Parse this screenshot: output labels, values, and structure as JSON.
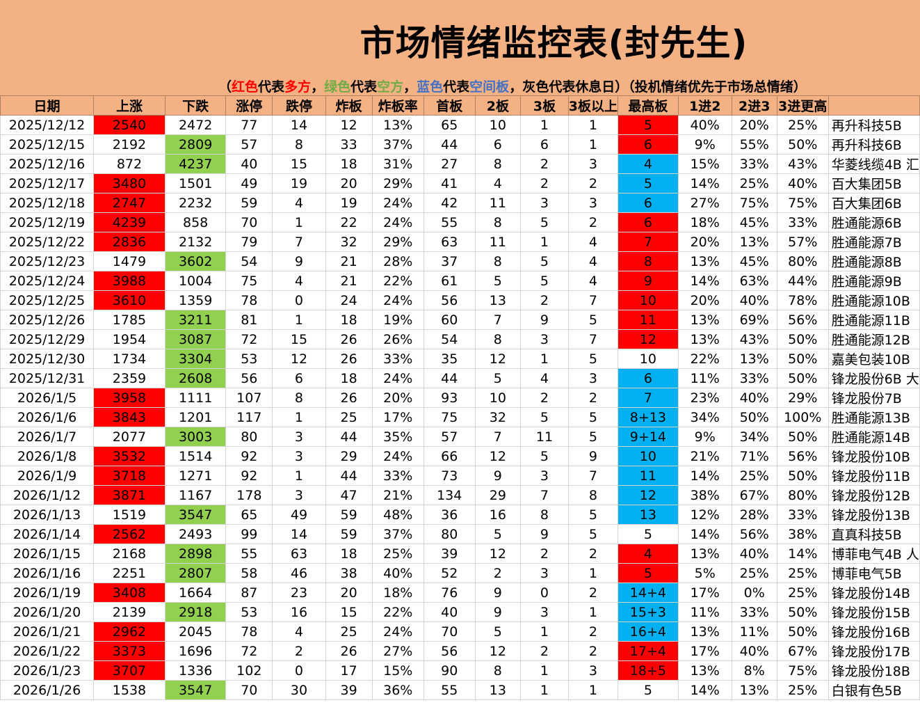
{
  "title": "市场情绪监控表(封先生)",
  "legend": {
    "open": "（",
    "red_word": "红色",
    "red_mid": "代表",
    "red_side": "多方",
    "sep1": "，",
    "green_word": "绿色",
    "green_mid": "代表",
    "green_side": "空方",
    "sep2": "，",
    "blue_word": "蓝色",
    "blue_mid": "代表",
    "blue_side": "空间板",
    "gray_text": "，灰色代表休息日）（投机情绪优先于市场总情绪）"
  },
  "colors": {
    "header_bg": "#f4b183",
    "red": "#ff0000",
    "green": "#92d050",
    "blue": "#00b0f0"
  },
  "columns": [
    "日期",
    "上涨",
    "下跌",
    "涨停",
    "跌停",
    "炸板",
    "炸板率",
    "首板",
    "2板",
    "3板",
    "3板以上",
    "最高板",
    "1进2",
    "2进3",
    "3进更高",
    ""
  ],
  "rows": [
    {
      "date": "2025/12/12",
      "up": "2540",
      "down": "2472",
      "zt": "77",
      "dt": "14",
      "zb": "12",
      "zbl": "13%",
      "sb": "65",
      "b2": "10",
      "b3": "1",
      "b3p": "1",
      "max": "5",
      "r12": "40%",
      "r23": "20%",
      "r3": "25%",
      "leader": "再升科技5B",
      "up_c": "red",
      "down_c": "",
      "max_c": "red",
      "leader_c": ""
    },
    {
      "date": "2025/12/15",
      "up": "2192",
      "down": "2809",
      "zt": "57",
      "dt": "8",
      "zb": "33",
      "zbl": "37%",
      "sb": "44",
      "b2": "6",
      "b3": "6",
      "b3p": "1",
      "max": "6",
      "r12": "9%",
      "r23": "55%",
      "r3": "50%",
      "leader": "再升科技6B",
      "up_c": "",
      "down_c": "green",
      "max_c": "red",
      "leader_c": ""
    },
    {
      "date": "2025/12/16",
      "up": "872",
      "down": "4237",
      "zt": "40",
      "dt": "15",
      "zb": "18",
      "zbl": "31%",
      "sb": "27",
      "b2": "8",
      "b3": "2",
      "b3p": "3",
      "max": "4",
      "r12": "15%",
      "r23": "33%",
      "r3": "43%",
      "leader": "华菱线缆4B 汇",
      "up_c": "",
      "down_c": "green",
      "max_c": "blue",
      "leader_c": ""
    },
    {
      "date": "2025/12/17",
      "up": "3480",
      "down": "1501",
      "zt": "49",
      "dt": "19",
      "zb": "20",
      "zbl": "29%",
      "sb": "41",
      "b2": "4",
      "b3": "2",
      "b3p": "2",
      "max": "5",
      "r12": "14%",
      "r23": "25%",
      "r3": "40%",
      "leader": "百大集团5B",
      "up_c": "red",
      "down_c": "",
      "max_c": "blue",
      "leader_c": ""
    },
    {
      "date": "2025/12/18",
      "up": "2747",
      "down": "2232",
      "zt": "59",
      "dt": "4",
      "zb": "19",
      "zbl": "24%",
      "sb": "42",
      "b2": "11",
      "b3": "3",
      "b3p": "3",
      "max": "6",
      "r12": "27%",
      "r23": "75%",
      "r3": "75%",
      "leader": "百大集团6B",
      "up_c": "red",
      "down_c": "",
      "max_c": "blue",
      "leader_c": "red"
    },
    {
      "date": "2025/12/19",
      "up": "4239",
      "down": "858",
      "zt": "70",
      "dt": "1",
      "zb": "22",
      "zbl": "24%",
      "sb": "55",
      "b2": "8",
      "b3": "5",
      "b3p": "2",
      "max": "6",
      "r12": "18%",
      "r23": "45%",
      "r3": "33%",
      "leader": "胜通能源6B",
      "up_c": "red",
      "down_c": "",
      "max_c": "red",
      "leader_c": ""
    },
    {
      "date": "2025/12/22",
      "up": "2836",
      "down": "2132",
      "zt": "79",
      "dt": "7",
      "zb": "32",
      "zbl": "29%",
      "sb": "63",
      "b2": "11",
      "b3": "1",
      "b3p": "4",
      "max": "7",
      "r12": "20%",
      "r23": "13%",
      "r3": "57%",
      "leader": "胜通能源7B",
      "up_c": "red",
      "down_c": "",
      "max_c": "red",
      "leader_c": ""
    },
    {
      "date": "2025/12/23",
      "up": "1479",
      "down": "3602",
      "zt": "54",
      "dt": "9",
      "zb": "21",
      "zbl": "28%",
      "sb": "37",
      "b2": "8",
      "b3": "5",
      "b3p": "4",
      "max": "8",
      "r12": "13%",
      "r23": "45%",
      "r3": "80%",
      "leader": "胜通能源8B",
      "up_c": "",
      "down_c": "green",
      "max_c": "red",
      "leader_c": ""
    },
    {
      "date": "2025/12/24",
      "up": "3988",
      "down": "1004",
      "zt": "75",
      "dt": "4",
      "zb": "21",
      "zbl": "22%",
      "sb": "61",
      "b2": "5",
      "b3": "5",
      "b3p": "4",
      "max": "9",
      "r12": "14%",
      "r23": "63%",
      "r3": "44%",
      "leader": "胜通能源9B",
      "up_c": "red",
      "down_c": "",
      "max_c": "red",
      "leader_c": ""
    },
    {
      "date": "2025/12/25",
      "up": "3610",
      "down": "1359",
      "zt": "78",
      "dt": "0",
      "zb": "24",
      "zbl": "24%",
      "sb": "56",
      "b2": "13",
      "b3": "2",
      "b3p": "7",
      "max": "10",
      "r12": "20%",
      "r23": "40%",
      "r3": "78%",
      "leader": "胜通能源10B",
      "up_c": "red",
      "down_c": "",
      "max_c": "red",
      "leader_c": ""
    },
    {
      "date": "2025/12/26",
      "up": "1785",
      "down": "3211",
      "zt": "81",
      "dt": "1",
      "zb": "18",
      "zbl": "19%",
      "sb": "60",
      "b2": "7",
      "b3": "9",
      "b3p": "5",
      "max": "11",
      "r12": "13%",
      "r23": "69%",
      "r3": "56%",
      "leader": "胜通能源11B",
      "up_c": "",
      "down_c": "green",
      "max_c": "red",
      "leader_c": ""
    },
    {
      "date": "2025/12/29",
      "up": "1954",
      "down": "3087",
      "zt": "72",
      "dt": "15",
      "zb": "26",
      "zbl": "26%",
      "sb": "54",
      "b2": "8",
      "b3": "3",
      "b3p": "7",
      "max": "12",
      "r12": "13%",
      "r23": "43%",
      "r3": "50%",
      "leader": "胜通能源12B",
      "up_c": "",
      "down_c": "green",
      "max_c": "red",
      "leader_c": "red"
    },
    {
      "date": "2025/12/30",
      "up": "1734",
      "down": "3304",
      "zt": "53",
      "dt": "12",
      "zb": "26",
      "zbl": "33%",
      "sb": "35",
      "b2": "12",
      "b3": "1",
      "b3p": "5",
      "max": "10",
      "r12": "22%",
      "r23": "13%",
      "r3": "50%",
      "leader": "嘉美包装10B",
      "up_c": "",
      "down_c": "green",
      "max_c": "",
      "leader_c": ""
    },
    {
      "date": "2025/12/31",
      "up": "2359",
      "down": "2608",
      "zt": "56",
      "dt": "6",
      "zb": "18",
      "zbl": "24%",
      "sb": "44",
      "b2": "5",
      "b3": "4",
      "b3p": "3",
      "max": "6",
      "r12": "11%",
      "r23": "33%",
      "r3": "50%",
      "leader": "锋龙股份6B 大",
      "up_c": "",
      "down_c": "green",
      "max_c": "blue",
      "leader_c": ""
    },
    {
      "date": "2026/1/5",
      "up": "3958",
      "down": "1111",
      "zt": "107",
      "dt": "8",
      "zb": "26",
      "zbl": "20%",
      "sb": "93",
      "b2": "10",
      "b3": "2",
      "b3p": "2",
      "max": "7",
      "r12": "23%",
      "r23": "40%",
      "r3": "29%",
      "leader": "锋龙股份7B",
      "up_c": "red",
      "down_c": "",
      "max_c": "blue",
      "leader_c": ""
    },
    {
      "date": "2026/1/6",
      "up": "3843",
      "down": "1201",
      "zt": "117",
      "dt": "1",
      "zb": "25",
      "zbl": "17%",
      "sb": "75",
      "b2": "32",
      "b3": "5",
      "b3p": "5",
      "max": "8+13",
      "r12": "34%",
      "r23": "50%",
      "r3": "100%",
      "leader": "胜通能源13B",
      "up_c": "red",
      "down_c": "",
      "max_c": "blue",
      "leader_c": ""
    },
    {
      "date": "2026/1/7",
      "up": "2077",
      "down": "3003",
      "zt": "80",
      "dt": "3",
      "zb": "44",
      "zbl": "35%",
      "sb": "57",
      "b2": "7",
      "b3": "11",
      "b3p": "5",
      "max": "9+14",
      "r12": "9%",
      "r23": "34%",
      "r3": "50%",
      "leader": "胜通能源14B",
      "up_c": "",
      "down_c": "green",
      "max_c": "blue",
      "leader_c": "red"
    },
    {
      "date": "2026/1/8",
      "up": "3532",
      "down": "1514",
      "zt": "92",
      "dt": "3",
      "zb": "29",
      "zbl": "24%",
      "sb": "66",
      "b2": "12",
      "b3": "5",
      "b3p": "9",
      "max": "10",
      "r12": "21%",
      "r23": "71%",
      "r3": "56%",
      "leader": "锋龙股份10B",
      "up_c": "red",
      "down_c": "",
      "max_c": "blue",
      "leader_c": ""
    },
    {
      "date": "2026/1/9",
      "up": "3718",
      "down": "1271",
      "zt": "92",
      "dt": "1",
      "zb": "44",
      "zbl": "33%",
      "sb": "73",
      "b2": "9",
      "b3": "3",
      "b3p": "7",
      "max": "11",
      "r12": "14%",
      "r23": "25%",
      "r3": "50%",
      "leader": "锋龙股份11B",
      "up_c": "red",
      "down_c": "",
      "max_c": "blue",
      "leader_c": ""
    },
    {
      "date": "2026/1/12",
      "up": "3871",
      "down": "1167",
      "zt": "178",
      "dt": "3",
      "zb": "47",
      "zbl": "21%",
      "sb": "134",
      "b2": "29",
      "b3": "7",
      "b3p": "8",
      "max": "12",
      "r12": "38%",
      "r23": "67%",
      "r3": "80%",
      "leader": "锋龙股份12B",
      "up_c": "red",
      "down_c": "",
      "max_c": "blue",
      "leader_c": ""
    },
    {
      "date": "2026/1/13",
      "up": "1519",
      "down": "3547",
      "zt": "65",
      "dt": "49",
      "zb": "59",
      "zbl": "48%",
      "sb": "36",
      "b2": "16",
      "b3": "8",
      "b3p": "5",
      "max": "13",
      "r12": "12%",
      "r23": "28%",
      "r3": "33%",
      "leader": "锋龙股份13B",
      "up_c": "",
      "down_c": "green",
      "max_c": "blue",
      "leader_c": ""
    },
    {
      "date": "2026/1/14",
      "up": "2562",
      "down": "2493",
      "zt": "99",
      "dt": "14",
      "zb": "59",
      "zbl": "37%",
      "sb": "80",
      "b2": "5",
      "b3": "9",
      "b3p": "5",
      "max": "5",
      "r12": "14%",
      "r23": "56%",
      "r3": "38%",
      "leader": "直真科技5B",
      "up_c": "red",
      "down_c": "",
      "max_c": "",
      "leader_c": ""
    },
    {
      "date": "2026/1/15",
      "up": "2168",
      "down": "2898",
      "zt": "55",
      "dt": "63",
      "zb": "18",
      "zbl": "25%",
      "sb": "39",
      "b2": "12",
      "b3": "2",
      "b3p": "2",
      "max": "4",
      "r12": "13%",
      "r23": "40%",
      "r3": "14%",
      "leader": "博菲电气4B 人",
      "up_c": "",
      "down_c": "green",
      "max_c": "red",
      "leader_c": ""
    },
    {
      "date": "2026/1/16",
      "up": "2251",
      "down": "2807",
      "zt": "58",
      "dt": "46",
      "zb": "38",
      "zbl": "40%",
      "sb": "52",
      "b2": "2",
      "b3": "3",
      "b3p": "1",
      "max": "5",
      "r12": "5%",
      "r23": "25%",
      "r3": "25%",
      "leader": "博菲电气5B",
      "up_c": "",
      "down_c": "green",
      "max_c": "red",
      "leader_c": "red"
    },
    {
      "date": "2026/1/19",
      "up": "3408",
      "down": "1664",
      "zt": "87",
      "dt": "23",
      "zb": "20",
      "zbl": "18%",
      "sb": "76",
      "b2": "9",
      "b3": "0",
      "b3p": "2",
      "max": "14+4",
      "r12": "17%",
      "r23": "0%",
      "r3": "25%",
      "leader": "锋龙股份14B",
      "up_c": "red",
      "down_c": "",
      "max_c": "blue",
      "leader_c": ""
    },
    {
      "date": "2026/1/20",
      "up": "2139",
      "down": "2918",
      "zt": "53",
      "dt": "16",
      "zb": "15",
      "zbl": "22%",
      "sb": "40",
      "b2": "9",
      "b3": "3",
      "b3p": "1",
      "max": "15+3",
      "r12": "11%",
      "r23": "33%",
      "r3": "50%",
      "leader": "锋龙股份15B",
      "up_c": "",
      "down_c": "green",
      "max_c": "blue",
      "leader_c": ""
    },
    {
      "date": "2026/1/21",
      "up": "2962",
      "down": "2045",
      "zt": "78",
      "dt": "4",
      "zb": "25",
      "zbl": "24%",
      "sb": "70",
      "b2": "5",
      "b3": "1",
      "b3p": "2",
      "max": "16+4",
      "r12": "13%",
      "r23": "11%",
      "r3": "50%",
      "leader": "锋龙股份16B",
      "up_c": "red",
      "down_c": "",
      "max_c": "blue",
      "leader_c": ""
    },
    {
      "date": "2026/1/22",
      "up": "3373",
      "down": "1696",
      "zt": "72",
      "dt": "2",
      "zb": "26",
      "zbl": "27%",
      "sb": "56",
      "b2": "12",
      "b3": "2",
      "b3p": "2",
      "max": "17+4",
      "r12": "17%",
      "r23": "40%",
      "r3": "67%",
      "leader": "锋龙股份17B",
      "up_c": "red",
      "down_c": "",
      "max_c": "red",
      "leader_c": ""
    },
    {
      "date": "2026/1/23",
      "up": "3707",
      "down": "1336",
      "zt": "102",
      "dt": "0",
      "zb": "17",
      "zbl": "15%",
      "sb": "90",
      "b2": "8",
      "b3": "1",
      "b3p": "3",
      "max": "18+5",
      "r12": "13%",
      "r23": "8%",
      "r3": "75%",
      "leader": "锋龙股份18B",
      "up_c": "red",
      "down_c": "",
      "max_c": "red",
      "leader_c": ""
    },
    {
      "date": "2026/1/26",
      "up": "1538",
      "down": "3547",
      "zt": "70",
      "dt": "30",
      "zb": "39",
      "zbl": "36%",
      "sb": "55",
      "b2": "13",
      "b3": "1",
      "b3p": "1",
      "max": "5",
      "r12": "14%",
      "r23": "13%",
      "r3": "25%",
      "leader": "白银有色5B",
      "up_c": "",
      "down_c": "green",
      "max_c": "",
      "leader_c": ""
    }
  ]
}
